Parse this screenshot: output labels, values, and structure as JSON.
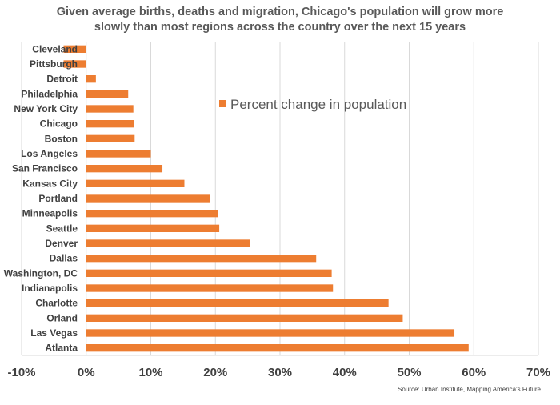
{
  "title_lines": [
    "Given average births, deaths and migration, Chicago's population will grow more",
    "slowly than most regions across the country over the next 15 years"
  ],
  "source": "Source:  Urban Institute, Mapping America's Future",
  "chart_data": {
    "type": "bar",
    "orientation": "horizontal",
    "title": "Given average births, deaths and migration, Chicago's population will grow more slowly than most regions across the country over the next 15 years",
    "categories": [
      "Cleveland",
      "Pittsburgh",
      "Detroit",
      "Philadelphia",
      "New York City",
      "Chicago",
      "Boston",
      "Los Angeles",
      "San Francisco",
      "Kansas City",
      "Portland",
      "Minneapolis",
      "Seattle",
      "Denver",
      "Dallas",
      "Washington, DC",
      "Indianapolis",
      "Charlotte",
      "Orland",
      "Las Vegas",
      "Atlanta"
    ],
    "series": [
      {
        "name": "Percent change in population",
        "values": [
          -3.5,
          -3.5,
          1.5,
          6.5,
          7.3,
          7.4,
          7.5,
          10,
          11.8,
          15.2,
          19.2,
          20.4,
          20.6,
          25.4,
          35.6,
          38,
          38.2,
          46.8,
          49,
          57,
          59.2
        ]
      }
    ],
    "xlim": [
      -10,
      70
    ],
    "xticks": [
      "-10%",
      "0%",
      "10%",
      "20%",
      "30%",
      "40%",
      "50%",
      "60%",
      "70%"
    ],
    "xlabel": "",
    "ylabel": "",
    "legend": "top-right, inside plot",
    "grid": "vertical gridlines",
    "colors": {
      "bar": "#ED7D31",
      "grid": "#D9D9D9",
      "text": "#404040"
    }
  }
}
